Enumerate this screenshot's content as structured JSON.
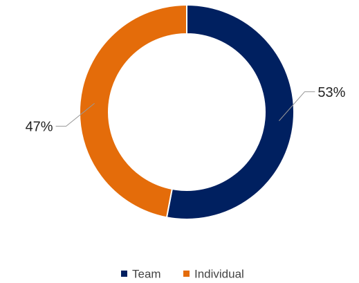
{
  "chart_data": {
    "type": "donut",
    "categories": [
      "Team",
      "Individual"
    ],
    "values": [
      53,
      47
    ],
    "value_labels": [
      "53%",
      "47%"
    ],
    "colors": [
      "#002060",
      "#e46c0a"
    ],
    "legend": "bottom"
  }
}
